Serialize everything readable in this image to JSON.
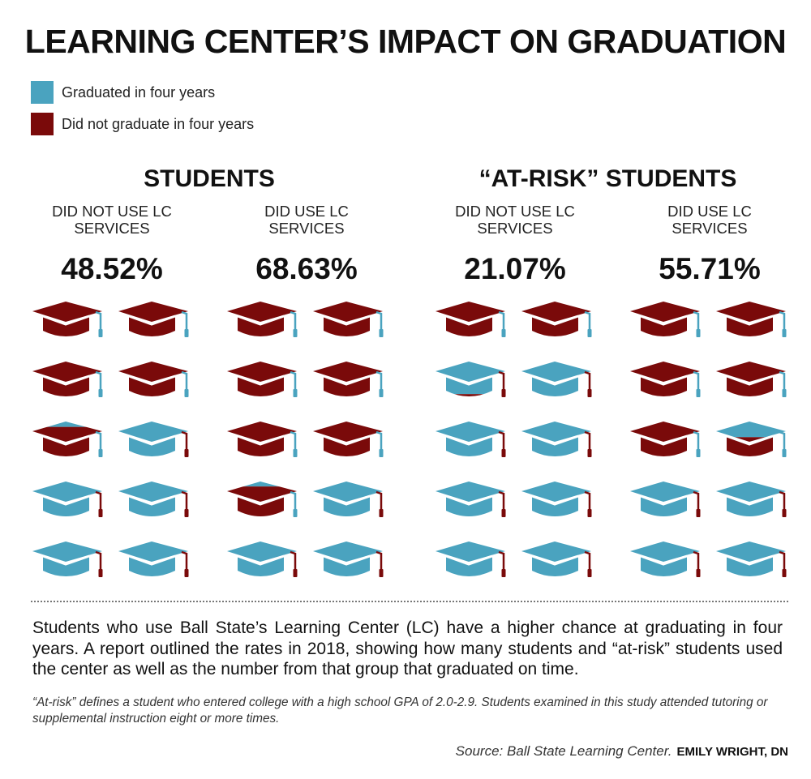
{
  "title": "LEARNING CENTER’S IMPACT ON GRADUATION",
  "legend": [
    {
      "label": "Graduated in four years",
      "color": "#4aa3bf"
    },
    {
      "label": "Did not graduate in four years",
      "color": "#7a0a0a"
    }
  ],
  "groups": [
    {
      "title": "STUDENTS"
    },
    {
      "title": "“AT-RISK” STUDENTS"
    }
  ],
  "chart_data": {
    "type": "bar",
    "categories": [
      "STUDENTS — DID NOT USE LC SERVICES",
      "STUDENTS — DID USE LC SERVICES",
      "“AT-RISK” STUDENTS — DID NOT USE LC SERVICES",
      "“AT-RISK” STUDENTS — DID USE LC SERVICES"
    ],
    "panels": [
      {
        "group": "STUDENTS",
        "label": "DID NOT USE LC\nSERVICES",
        "value": 48.52,
        "value_label": "48.52%"
      },
      {
        "group": "STUDENTS",
        "label": "DID USE LC\nSERVICES",
        "value": 68.63,
        "value_label": "68.63%"
      },
      {
        "group": "“AT-RISK” STUDENTS",
        "label": "DID NOT USE LC\nSERVICES",
        "value": 21.07,
        "value_label": "21.07%"
      },
      {
        "group": "“AT-RISK” STUDENTS",
        "label": "DID USE LC\nSERVICES",
        "value": 55.71,
        "value_label": "55.71%"
      }
    ],
    "icons_per_panel": 10,
    "colors": {
      "graduated": "#4aa3bf",
      "not_graduated": "#7a0a0a"
    }
  },
  "description": "Students who use Ball State’s Learning Center (LC) have a higher chance at graduating in four years. A report outlined the rates in 2018, showing how many students and “at-risk” students used the center as well as the number from that group that graduated on time.",
  "footnote": "“At-risk” defines a student who entered college with a high school GPA of 2.0-2.9. Students examined in this study attended tutoring or supplemental instruction eight or more times.",
  "source": "Source: Ball State Learning Center.",
  "credit": "EMILY WRIGHT, DN"
}
